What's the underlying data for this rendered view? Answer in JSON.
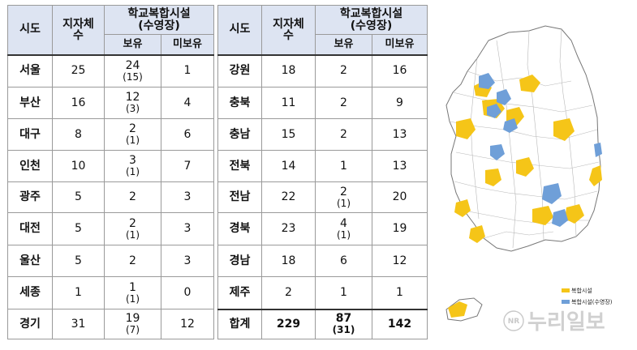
{
  "headers": {
    "region": "시도",
    "branches": "지자체\n수",
    "facility": "학교복합시설",
    "facility_sub": "(수영장)",
    "has": "보유",
    "not_has": "미보유"
  },
  "left_rows": [
    {
      "region": "서울",
      "branches": "25",
      "has": "24",
      "has_pool": "(15)",
      "not_has": "1"
    },
    {
      "region": "부산",
      "branches": "16",
      "has": "12",
      "has_pool": "(3)",
      "not_has": "4"
    },
    {
      "region": "대구",
      "branches": "8",
      "has": "2",
      "has_pool": "(1)",
      "not_has": "6"
    },
    {
      "region": "인천",
      "branches": "10",
      "has": "3",
      "has_pool": "(1)",
      "not_has": "7"
    },
    {
      "region": "광주",
      "branches": "5",
      "has": "2",
      "has_pool": "",
      "not_has": "3"
    },
    {
      "region": "대전",
      "branches": "5",
      "has": "2",
      "has_pool": "(1)",
      "not_has": "3"
    },
    {
      "region": "울산",
      "branches": "5",
      "has": "2",
      "has_pool": "",
      "not_has": "3"
    },
    {
      "region": "세종",
      "branches": "1",
      "has": "1",
      "has_pool": "(1)",
      "not_has": "0"
    },
    {
      "region": "경기",
      "branches": "31",
      "has": "19",
      "has_pool": "(7)",
      "not_has": "12"
    }
  ],
  "right_rows": [
    {
      "region": "강원",
      "branches": "18",
      "has": "2",
      "has_pool": "",
      "not_has": "16"
    },
    {
      "region": "충북",
      "branches": "11",
      "has": "2",
      "has_pool": "",
      "not_has": "9"
    },
    {
      "region": "충남",
      "branches": "15",
      "has": "2",
      "has_pool": "",
      "not_has": "13"
    },
    {
      "region": "전북",
      "branches": "14",
      "has": "1",
      "has_pool": "",
      "not_has": "13"
    },
    {
      "region": "전남",
      "branches": "22",
      "has": "2",
      "has_pool": "(1)",
      "not_has": "20"
    },
    {
      "region": "경북",
      "branches": "23",
      "has": "4",
      "has_pool": "(1)",
      "not_has": "19"
    },
    {
      "region": "경남",
      "branches": "18",
      "has": "6",
      "has_pool": "",
      "not_has": "12"
    },
    {
      "region": "제주",
      "branches": "2",
      "has": "1",
      "has_pool": "",
      "not_has": "1"
    },
    {
      "region": "합계",
      "branches": "229",
      "has": "87",
      "has_pool": "(31)",
      "not_has": "142"
    }
  ],
  "legend": {
    "facility_label": "복합시설",
    "pool_label": "복합시설(수영장)",
    "facility_color": "#f5c518",
    "pool_color": "#6f9fd8"
  },
  "watermark": {
    "logo_letters": "NR",
    "text": "누리일보"
  },
  "colors": {
    "header_bg": "#dde4f2",
    "border": "#9a9a9a"
  }
}
